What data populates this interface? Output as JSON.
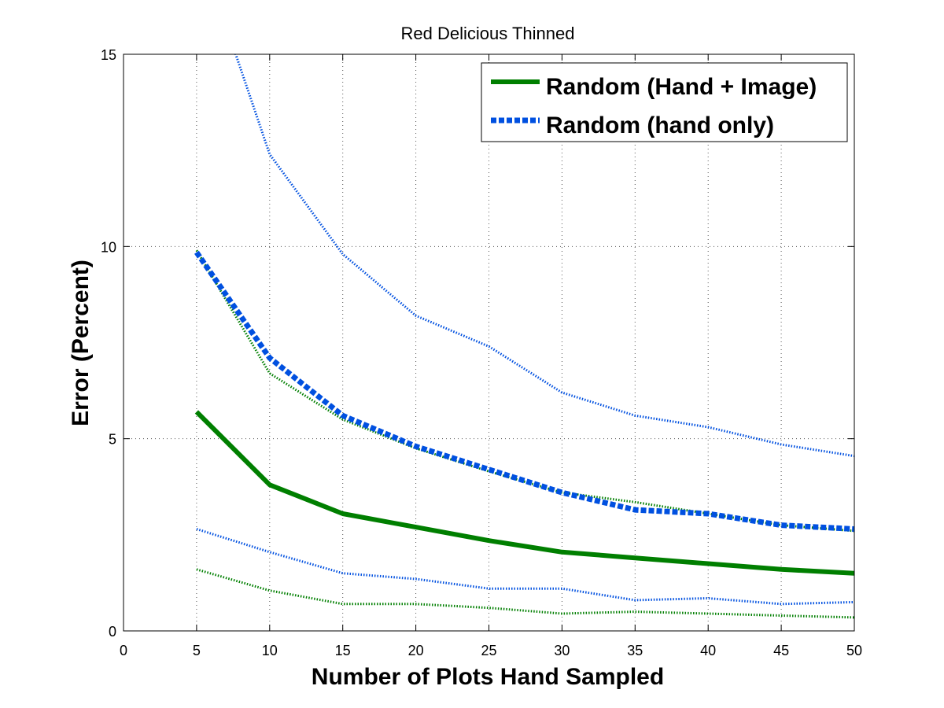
{
  "chart_data": {
    "type": "line",
    "title": "Red Delicious Thinned",
    "xlabel": "Number of Plots Hand Sampled",
    "ylabel": "Error (Percent)",
    "xlim": [
      0,
      50
    ],
    "ylim": [
      0,
      15
    ],
    "xticks": [
      "0",
      "5",
      "10",
      "15",
      "20",
      "25",
      "30",
      "35",
      "40",
      "45",
      "50"
    ],
    "yticks": [
      "0",
      "5",
      "10",
      "15"
    ],
    "grid": true,
    "legend_position": "top-right",
    "x": [
      5,
      10,
      15,
      20,
      25,
      30,
      35,
      40,
      45,
      50
    ],
    "series": [
      {
        "name": "Random (Hand + Image)",
        "color": "#007f00",
        "style": "solid",
        "values": [
          5.7,
          3.8,
          3.05,
          2.7,
          2.35,
          2.05,
          1.9,
          1.75,
          1.6,
          1.5
        ]
      },
      {
        "name": "Random (hand only)",
        "color": "#0050e0",
        "style": "dashed",
        "values": [
          9.85,
          7.1,
          5.6,
          4.8,
          4.2,
          3.6,
          3.15,
          3.05,
          2.75,
          2.65
        ]
      }
    ],
    "bounds": [
      {
        "color": "#007f00",
        "kind": "upper",
        "values": [
          9.9,
          6.7,
          5.5,
          4.75,
          4.15,
          3.6,
          3.35,
          3.05,
          2.75,
          2.6
        ]
      },
      {
        "color": "#007f00",
        "kind": "lower",
        "values": [
          1.6,
          1.05,
          0.7,
          0.7,
          0.6,
          0.45,
          0.5,
          0.45,
          0.4,
          0.35
        ]
      },
      {
        "color": "#0050e0",
        "kind": "upper",
        "values": [
          18.0,
          12.4,
          9.8,
          8.2,
          7.4,
          6.2,
          5.6,
          5.3,
          4.85,
          4.55
        ]
      },
      {
        "color": "#0050e0",
        "kind": "lower",
        "values": [
          2.65,
          2.05,
          1.5,
          1.35,
          1.1,
          1.1,
          0.8,
          0.85,
          0.7,
          0.75
        ]
      }
    ]
  }
}
